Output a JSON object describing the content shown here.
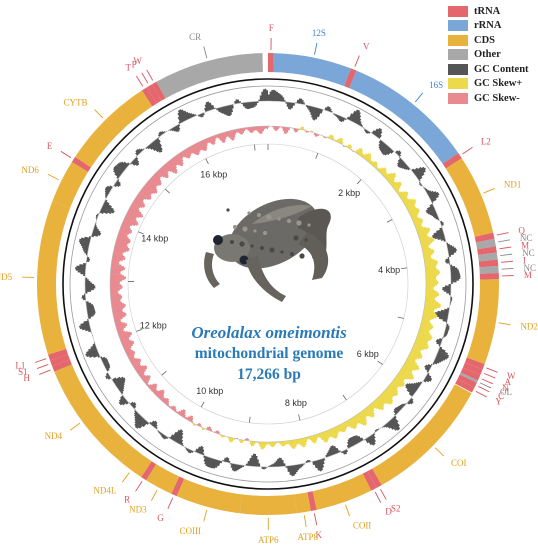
{
  "legend": [
    {
      "label": "tRNA",
      "color": "#e4676e"
    },
    {
      "label": "rRNA",
      "color": "#7ba7d8"
    },
    {
      "label": "CDS",
      "color": "#e8b23c"
    },
    {
      "label": "Other",
      "color": "#a8a8a8"
    },
    {
      "label": "GC Content",
      "color": "#555555"
    },
    {
      "label": "GC Skew+",
      "color": "#ecd94c"
    },
    {
      "label": "GC Skew-",
      "color": "#e88a8f"
    }
  ],
  "title": {
    "species": "Oreolalax omeimontis",
    "subtitle": "mitochondrial genome",
    "length": "17,266 bp"
  },
  "genome_length": 17266,
  "scale_ticks": [
    "2 kbp",
    "4 kbp",
    "6 kbp",
    "8 kbp",
    "10 kbp",
    "12 kbp",
    "14 kbp",
    "16 kbp"
  ],
  "photo": {
    "subject": "frog"
  },
  "features": [
    {
      "name": "F",
      "type": "tRNA",
      "start": 0,
      "end": 70
    },
    {
      "name": "12S",
      "type": "rRNA",
      "start": 70,
      "end": 1010
    },
    {
      "name": "V",
      "type": "tRNA",
      "start": 1010,
      "end": 1080
    },
    {
      "name": "16S",
      "type": "rRNA",
      "start": 1080,
      "end": 2660
    },
    {
      "name": "L2",
      "type": "tRNA",
      "start": 2660,
      "end": 2735
    },
    {
      "name": "ND1",
      "type": "CDS",
      "start": 2735,
      "end": 3700
    },
    {
      "name": "Q",
      "type": "tRNA",
      "start": 3700,
      "end": 3775
    },
    {
      "name": "NC",
      "type": "Other",
      "start": 3775,
      "end": 3865
    },
    {
      "name": "M",
      "type": "tRNA",
      "start": 3865,
      "end": 3940
    },
    {
      "name": "NC",
      "type": "Other",
      "start": 3940,
      "end": 4025
    },
    {
      "name": "I",
      "type": "tRNA",
      "start": 4025,
      "end": 4100
    },
    {
      "name": "NC",
      "type": "Other",
      "start": 4100,
      "end": 4185
    },
    {
      "name": "M",
      "type": "tRNA",
      "start": 4185,
      "end": 4260
    },
    {
      "name": "ND2",
      "type": "CDS",
      "start": 4260,
      "end": 5290
    },
    {
      "name": "W",
      "type": "tRNA",
      "start": 5290,
      "end": 5360
    },
    {
      "name": "A",
      "type": "tRNA",
      "start": 5360,
      "end": 5430
    },
    {
      "name": "N",
      "type": "tRNA",
      "start": 5430,
      "end": 5500
    },
    {
      "name": "OL",
      "type": "Other",
      "start": 5500,
      "end": 5530
    },
    {
      "name": "C",
      "type": "tRNA",
      "start": 5530,
      "end": 5595
    },
    {
      "name": "Y",
      "type": "tRNA",
      "start": 5595,
      "end": 5660
    },
    {
      "name": "COI",
      "type": "CDS",
      "start": 5670,
      "end": 7220
    },
    {
      "name": "S2",
      "type": "tRNA",
      "start": 7220,
      "end": 7290
    },
    {
      "name": "D",
      "type": "tRNA",
      "start": 7290,
      "end": 7360
    },
    {
      "name": "COII",
      "type": "CDS",
      "start": 7360,
      "end": 8050
    },
    {
      "name": "K",
      "type": "tRNA",
      "start": 8050,
      "end": 8120
    },
    {
      "name": "ATP8",
      "type": "CDS",
      "start": 8120,
      "end": 8290
    },
    {
      "name": "ATP6",
      "type": "CDS",
      "start": 8290,
      "end": 8970
    },
    {
      "name": "COIII",
      "type": "CDS",
      "start": 8970,
      "end": 9750
    },
    {
      "name": "G",
      "type": "tRNA",
      "start": 9750,
      "end": 9820
    },
    {
      "name": "ND3",
      "type": "CDS",
      "start": 9820,
      "end": 10160
    },
    {
      "name": "R",
      "type": "tRNA",
      "start": 10160,
      "end": 10230
    },
    {
      "name": "ND4L",
      "type": "CDS",
      "start": 10230,
      "end": 10520
    },
    {
      "name": "ND4",
      "type": "CDS",
      "start": 10520,
      "end": 11880
    },
    {
      "name": "H",
      "type": "tRNA",
      "start": 11880,
      "end": 11950
    },
    {
      "name": "S1",
      "type": "tRNA",
      "start": 11950,
      "end": 12020
    },
    {
      "name": "L1",
      "type": "tRNA",
      "start": 12020,
      "end": 12095
    },
    {
      "name": "ND5",
      "type": "CDS",
      "start": 12095,
      "end": 13960
    },
    {
      "name": "ND6",
      "type": "CDS",
      "start": 13960,
      "end": 14480
    },
    {
      "name": "E",
      "type": "tRNA",
      "start": 14480,
      "end": 14550
    },
    {
      "name": "CYTB",
      "type": "CDS",
      "start": 14550,
      "end": 15680
    },
    {
      "name": "T",
      "type": "tRNA",
      "start": 15680,
      "end": 15750
    },
    {
      "name": "P",
      "type": "tRNA",
      "start": 15750,
      "end": 15820
    },
    {
      "name": "W",
      "type": "tRNA",
      "start": 15820,
      "end": 15880
    },
    {
      "name": "CR",
      "type": "Other",
      "start": 15880,
      "end": 17200
    }
  ],
  "labels": [
    {
      "text": "F",
      "type": "tRNA",
      "pos": 35
    },
    {
      "text": "12S",
      "type": "rRNA",
      "pos": 550
    },
    {
      "text": "V",
      "type": "tRNA",
      "pos": 1045
    },
    {
      "text": "16S",
      "type": "rRNA",
      "pos": 1870
    },
    {
      "text": "L2",
      "type": "tRNA",
      "pos": 2697
    },
    {
      "text": "ND1",
      "type": "CDS",
      "pos": 3220
    },
    {
      "text": "Q",
      "type": "tRNA",
      "pos": 3737
    },
    {
      "text": "NC",
      "type": "Other",
      "pos": 3820
    },
    {
      "text": "M",
      "type": "tRNA",
      "pos": 3902
    },
    {
      "text": "NC",
      "type": "Other",
      "pos": 3982
    },
    {
      "text": "I",
      "type": "tRNA",
      "pos": 4062
    },
    {
      "text": "NC",
      "type": "Other",
      "pos": 4142
    },
    {
      "text": "M",
      "type": "tRNA",
      "pos": 4222
    },
    {
      "text": "ND2",
      "type": "CDS",
      "pos": 4775
    },
    {
      "text": "W",
      "type": "tRNA",
      "pos": 5325
    },
    {
      "text": "A",
      "type": "tRNA",
      "pos": 5395
    },
    {
      "text": "N",
      "type": "tRNA",
      "pos": 5465
    },
    {
      "text": "OL",
      "type": "Other",
      "pos": 5515
    },
    {
      "text": "C",
      "type": "tRNA",
      "pos": 5562
    },
    {
      "text": "Y",
      "type": "tRNA",
      "pos": 5627
    },
    {
      "text": "COI",
      "type": "CDS",
      "pos": 6445
    },
    {
      "text": "S2",
      "type": "tRNA",
      "pos": 7255
    },
    {
      "text": "D",
      "type": "tRNA",
      "pos": 7325
    },
    {
      "text": "COII",
      "type": "CDS",
      "pos": 7705
    },
    {
      "text": "K",
      "type": "tRNA",
      "pos": 8085
    },
    {
      "text": "ATP8",
      "type": "CDS",
      "pos": 8205
    },
    {
      "text": "ATP6",
      "type": "CDS",
      "pos": 8630
    },
    {
      "text": "COIII",
      "type": "CDS",
      "pos": 9360
    },
    {
      "text": "G",
      "type": "tRNA",
      "pos": 9785
    },
    {
      "text": "ND3",
      "type": "CDS",
      "pos": 9990
    },
    {
      "text": "R",
      "type": "tRNA",
      "pos": 10195
    },
    {
      "text": "ND4L",
      "type": "CDS",
      "pos": 10375
    },
    {
      "text": "ND4",
      "type": "CDS",
      "pos": 11200
    },
    {
      "text": "H",
      "type": "tRNA",
      "pos": 11915
    },
    {
      "text": "S1",
      "type": "tRNA",
      "pos": 11985
    },
    {
      "text": "L1",
      "type": "tRNA",
      "pos": 12057
    },
    {
      "text": "ND5",
      "type": "CDS",
      "pos": 13027
    },
    {
      "text": "ND6",
      "type": "CDS",
      "pos": 14220
    },
    {
      "text": "E",
      "type": "tRNA",
      "pos": 14515
    },
    {
      "text": "CYTB",
      "type": "CDS",
      "pos": 15115
    },
    {
      "text": "T",
      "type": "tRNA",
      "pos": 15715
    },
    {
      "text": "P",
      "type": "tRNA",
      "pos": 15785
    },
    {
      "text": "W",
      "type": "tRNA",
      "pos": 15850
    },
    {
      "text": "CR",
      "type": "Other",
      "pos": 16540
    }
  ]
}
